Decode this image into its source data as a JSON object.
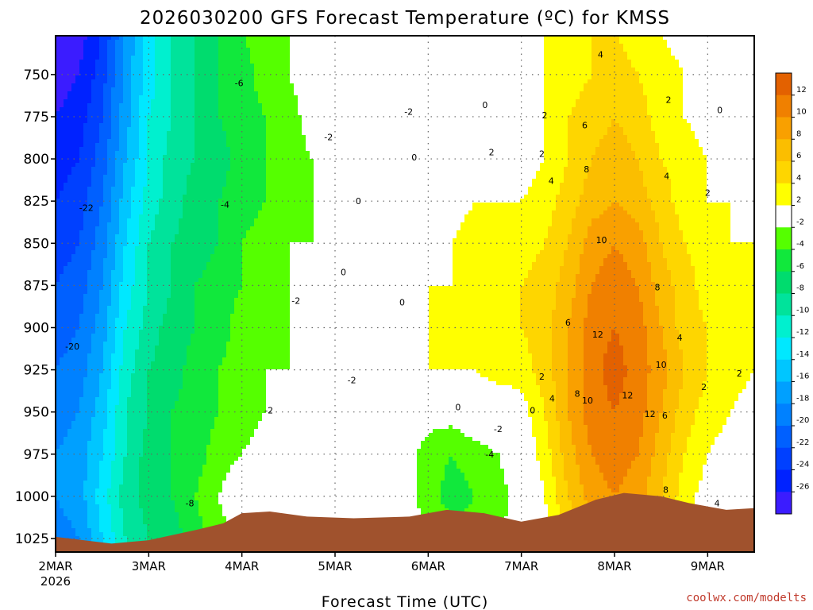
{
  "chart_data": {
    "type": "heatmap",
    "title": "2026030200 GFS Forecast Temperature (ºC) for KMSS",
    "xlabel": "Forecast Time (UTC)",
    "credit": "coolwx.com/modelts",
    "x_tick_labels": [
      "2MAR",
      "3MAR",
      "4MAR",
      "5MAR",
      "6MAR",
      "7MAR",
      "8MAR",
      "9MAR"
    ],
    "x_year_label": "2026",
    "y_tick_labels": [
      "750",
      "775",
      "800",
      "825",
      "850",
      "875",
      "900",
      "925",
      "950",
      "975",
      "1000",
      "1025"
    ],
    "y_ticks": [
      750,
      775,
      800,
      825,
      850,
      875,
      900,
      925,
      950,
      975,
      1000,
      1025
    ],
    "ylim": [
      727,
      1033
    ],
    "xlim_days": [
      2.0,
      9.5
    ],
    "y_inverted": true,
    "grid": true,
    "colorbar": {
      "labels": [
        "12",
        "10",
        "8",
        "6",
        "4",
        "2",
        "-2",
        "-4",
        "-6",
        "-8",
        "-10",
        "-12",
        "-14",
        "-16",
        "-18",
        "-20",
        "-22",
        "-24",
        "-26"
      ],
      "colors": [
        "#e36100",
        "#f08000",
        "#f9a000",
        "#fbbe00",
        "#fed600",
        "#ffff00",
        "#ffffff",
        "#55ff00",
        "#11e83c",
        "#00dc6e",
        "#00e39b",
        "#00f0cf",
        "#00e8ff",
        "#00c6ff",
        "#00a0ff",
        "#0081ff",
        "#0060ff",
        "#0040ff",
        "#0022ff",
        "#3b1cff"
      ]
    },
    "time_columns": [
      2.0,
      2.25,
      2.5,
      2.75,
      3.0,
      3.25,
      3.5,
      3.75,
      4.0,
      4.25,
      4.5,
      4.75,
      5.0,
      5.25,
      5.5,
      5.75,
      6.0,
      6.25,
      6.5,
      6.75,
      7.0,
      7.25,
      7.5,
      7.75,
      8.0,
      8.25,
      8.5,
      8.75,
      9.0,
      9.25,
      9.5
    ],
    "pressure_rows": [
      725,
      750,
      775,
      800,
      825,
      850,
      875,
      900,
      925,
      950,
      975,
      1000,
      1025
    ],
    "temperature_grid": [
      [
        -28,
        -27,
        -24,
        -18,
        -13,
        -10,
        -8,
        -6,
        -4,
        -3,
        -2,
        -2,
        0,
        0,
        0,
        -1,
        0,
        0,
        0,
        0,
        1,
        2,
        3,
        4,
        4,
        3,
        2,
        1,
        0,
        0,
        0
      ],
      [
        -27,
        -26,
        -23,
        -17,
        -13,
        -10,
        -8,
        -6,
        -5,
        -3,
        -2,
        -1,
        0,
        0,
        0,
        -1,
        0,
        0,
        0,
        0,
        1,
        2,
        3,
        4,
        5,
        4,
        3,
        2,
        1,
        0,
        0
      ],
      [
        -26,
        -25,
        -22,
        -17,
        -12,
        -10,
        -8,
        -6,
        -5,
        -4,
        -3,
        -1,
        0,
        1,
        0,
        -1,
        0,
        0,
        1,
        0,
        1,
        2,
        4,
        5,
        6,
        5,
        3,
        2,
        1,
        0,
        0
      ],
      [
        -25,
        -24,
        -21,
        -16,
        -12,
        -9,
        -8,
        -7,
        -5,
        -4,
        -3,
        -2,
        0,
        0,
        0,
        0,
        0,
        1,
        2,
        1,
        1,
        2,
        4,
        6,
        7,
        6,
        4,
        3,
        2,
        1,
        1
      ],
      [
        -24,
        -23,
        -20,
        -15,
        -11,
        -9,
        -7,
        -6,
        -5,
        -4,
        -3,
        -2,
        0,
        0,
        0,
        0,
        0,
        1,
        2,
        2,
        2,
        3,
        5,
        7,
        8,
        7,
        5,
        3,
        2,
        2,
        1
      ],
      [
        -23,
        -22,
        -19,
        -14,
        -10,
        -8,
        -7,
        -6,
        -4,
        -3,
        -2,
        -2,
        0,
        0,
        0,
        0,
        1,
        2,
        3,
        3,
        3,
        4,
        6,
        9,
        10,
        9,
        6,
        4,
        3,
        2,
        2
      ],
      [
        -22,
        -21,
        -18,
        -13,
        -10,
        -8,
        -6,
        -5,
        -4,
        -3,
        -2,
        -1,
        0,
        0,
        0,
        0,
        2,
        2,
        3,
        3,
        4,
        5,
        7,
        10,
        11,
        10,
        7,
        5,
        3,
        2,
        2
      ],
      [
        -21,
        -20,
        -17,
        -12,
        -9,
        -7,
        -6,
        -5,
        -3,
        -3,
        -2,
        -1,
        0,
        0,
        0,
        0,
        2,
        2,
        3,
        3,
        4,
        5,
        8,
        11,
        12,
        11,
        8,
        5,
        4,
        3,
        2
      ],
      [
        -20,
        -19,
        -16,
        -11,
        -8,
        -7,
        -5,
        -4,
        -3,
        -2,
        -2,
        -1,
        0,
        0,
        0,
        0,
        2,
        2,
        2,
        3,
        3,
        5,
        8,
        11,
        13,
        11,
        9,
        6,
        4,
        3,
        2
      ],
      [
        -19,
        -18,
        -15,
        -10,
        -8,
        -6,
        -5,
        -4,
        -3,
        -2,
        -1,
        -1,
        0,
        0,
        0,
        0,
        -1,
        -1,
        0,
        0,
        1,
        4,
        8,
        11,
        12,
        11,
        8,
        5,
        3,
        2,
        1
      ],
      [
        -18,
        -17,
        -14,
        -10,
        -7,
        -6,
        -5,
        -3,
        -2,
        -1,
        0,
        0,
        0,
        0,
        0,
        -1,
        -3,
        -4,
        -3,
        -2,
        0,
        3,
        7,
        10,
        11,
        10,
        7,
        4,
        2,
        1,
        0
      ],
      [
        -18,
        -17,
        -13,
        -9,
        -7,
        -6,
        -4,
        -2,
        0,
        0,
        0,
        0,
        0,
        0,
        0,
        -1,
        -3,
        -5,
        -4,
        -3,
        -1,
        2,
        6,
        9,
        10,
        9,
        6,
        3,
        1,
        0,
        0
      ],
      [
        -19,
        -18,
        -14,
        -10,
        -8,
        -7,
        -5,
        -3,
        -1,
        0,
        0,
        0,
        0,
        0,
        0,
        -1,
        -2,
        -3,
        -3,
        -2,
        -1,
        1,
        4,
        7,
        8,
        7,
        5,
        2,
        1,
        0,
        0
      ]
    ],
    "contour_labels": [
      {
        "text": "4",
        "day": 7.85,
        "p": 738
      },
      {
        "text": "-6",
        "day": 3.97,
        "p": 755
      },
      {
        "text": "2",
        "day": 8.58,
        "p": 765
      },
      {
        "text": "0",
        "day": 6.61,
        "p": 768
      },
      {
        "text": "-2",
        "day": 5.79,
        "p": 772
      },
      {
        "text": "0",
        "day": 9.13,
        "p": 771
      },
      {
        "text": "2",
        "day": 7.25,
        "p": 774
      },
      {
        "text": "6",
        "day": 7.68,
        "p": 780
      },
      {
        "text": "-2",
        "day": 4.93,
        "p": 787
      },
      {
        "text": "2",
        "day": 6.68,
        "p": 796
      },
      {
        "text": "0",
        "day": 5.85,
        "p": 799
      },
      {
        "text": "2",
        "day": 7.22,
        "p": 797
      },
      {
        "text": "8",
        "day": 7.7,
        "p": 806
      },
      {
        "text": "4",
        "day": 8.56,
        "p": 810
      },
      {
        "text": "4",
        "day": 7.32,
        "p": 813
      },
      {
        "text": "2",
        "day": 9.0,
        "p": 820
      },
      {
        "text": "0",
        "day": 5.25,
        "p": 825
      },
      {
        "text": "-4",
        "day": 3.82,
        "p": 827
      },
      {
        "text": "-22",
        "day": 2.33,
        "p": 829
      },
      {
        "text": "10",
        "day": 7.86,
        "p": 848
      },
      {
        "text": "0",
        "day": 5.09,
        "p": 867
      },
      {
        "text": "8",
        "day": 8.46,
        "p": 876
      },
      {
        "text": "-2",
        "day": 4.58,
        "p": 884
      },
      {
        "text": "0",
        "day": 5.72,
        "p": 885
      },
      {
        "text": "6",
        "day": 7.5,
        "p": 897
      },
      {
        "text": "12",
        "day": 7.82,
        "p": 904
      },
      {
        "text": "4",
        "day": 8.7,
        "p": 906
      },
      {
        "text": "-20",
        "day": 2.18,
        "p": 911
      },
      {
        "text": "10",
        "day": 8.5,
        "p": 922
      },
      {
        "text": "2",
        "day": 9.34,
        "p": 927
      },
      {
        "text": "2",
        "day": 7.22,
        "p": 929
      },
      {
        "text": "-2",
        "day": 5.18,
        "p": 931
      },
      {
        "text": "2",
        "day": 8.96,
        "p": 935
      },
      {
        "text": "8",
        "day": 7.6,
        "p": 939
      },
      {
        "text": "12",
        "day": 8.14,
        "p": 940
      },
      {
        "text": "4",
        "day": 7.33,
        "p": 942
      },
      {
        "text": "10",
        "day": 7.71,
        "p": 943
      },
      {
        "text": "0",
        "day": 6.32,
        "p": 947
      },
      {
        "text": "0",
        "day": 7.12,
        "p": 949
      },
      {
        "text": "-2",
        "day": 4.29,
        "p": 949
      },
      {
        "text": "12",
        "day": 8.38,
        "p": 951
      },
      {
        "text": "6",
        "day": 8.54,
        "p": 952
      },
      {
        "text": "-2",
        "day": 6.75,
        "p": 960
      },
      {
        "text": "-4",
        "day": 6.66,
        "p": 975
      },
      {
        "text": "8",
        "day": 8.55,
        "p": 996
      },
      {
        "text": "-8",
        "day": 3.44,
        "p": 1004
      },
      {
        "text": "4",
        "day": 9.1,
        "p": 1004
      }
    ],
    "surface_profile": [
      {
        "day": 2.0,
        "p": 1024
      },
      {
        "day": 2.6,
        "p": 1028
      },
      {
        "day": 3.0,
        "p": 1026
      },
      {
        "day": 3.5,
        "p": 1020
      },
      {
        "day": 3.8,
        "p": 1016
      },
      {
        "day": 4.0,
        "p": 1010
      },
      {
        "day": 4.3,
        "p": 1009
      },
      {
        "day": 4.7,
        "p": 1012
      },
      {
        "day": 5.2,
        "p": 1013
      },
      {
        "day": 5.8,
        "p": 1012
      },
      {
        "day": 6.2,
        "p": 1008
      },
      {
        "day": 6.6,
        "p": 1010
      },
      {
        "day": 7.0,
        "p": 1015
      },
      {
        "day": 7.4,
        "p": 1011
      },
      {
        "day": 7.8,
        "p": 1002
      },
      {
        "day": 8.1,
        "p": 998
      },
      {
        "day": 8.5,
        "p": 1000
      },
      {
        "day": 8.8,
        "p": 1004
      },
      {
        "day": 9.2,
        "p": 1008
      },
      {
        "day": 9.5,
        "p": 1007
      }
    ]
  },
  "colors": {
    "ground": "#a0522d",
    "zero_contour": "#c0187a",
    "contour": "#000000",
    "grid": "#666666"
  }
}
